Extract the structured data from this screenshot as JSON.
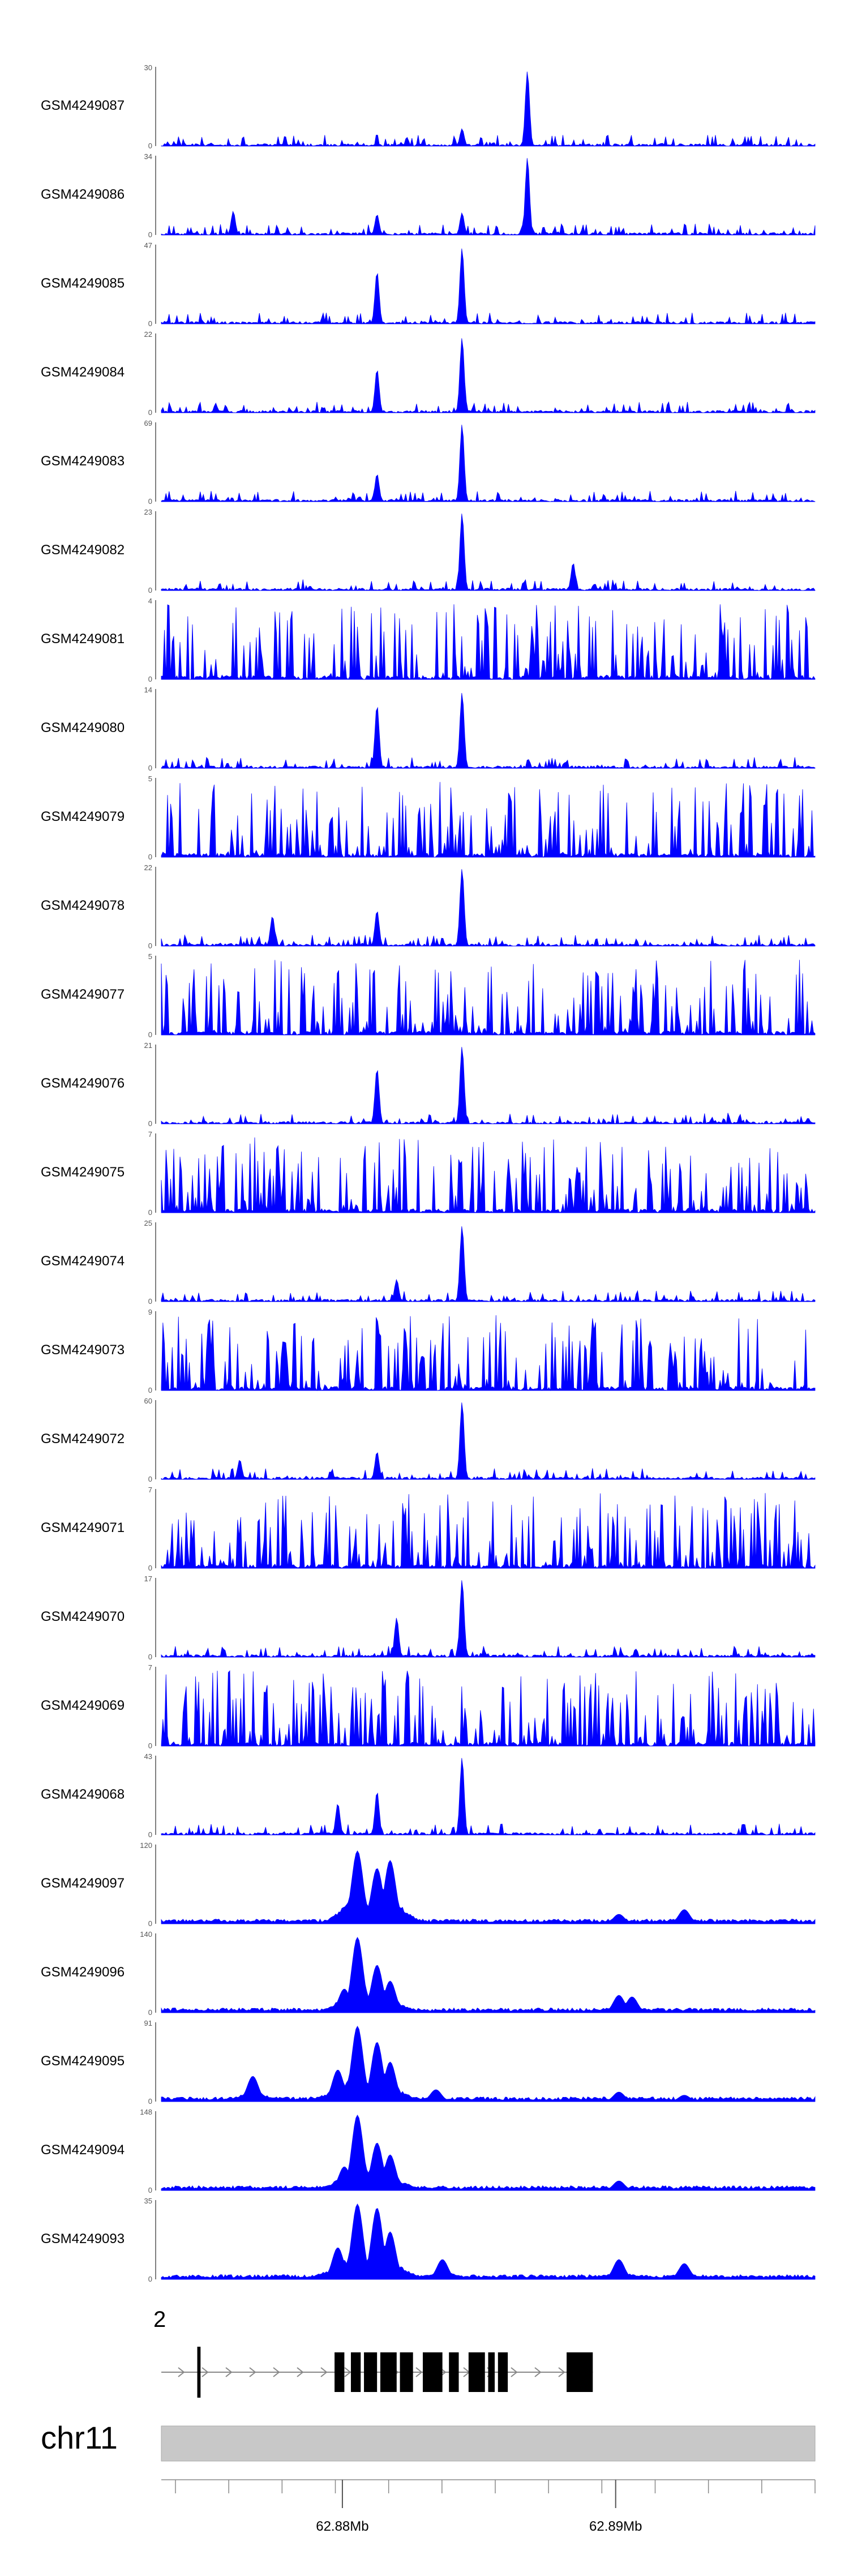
{
  "chart_data": {
    "type": "area",
    "tracks": [
      {
        "name": "GSM4249087",
        "ymax": "30",
        "ymin": "0",
        "color": "#0000ff",
        "profile": "focal",
        "peaks": [
          [
            0.46,
            0.22
          ],
          [
            0.56,
            0.95
          ]
        ]
      },
      {
        "name": "GSM4249086",
        "ymax": "34",
        "ymin": "0",
        "color": "#0000ff",
        "profile": "focal",
        "peaks": [
          [
            0.11,
            0.3
          ],
          [
            0.33,
            0.26
          ],
          [
            0.46,
            0.28
          ],
          [
            0.56,
            0.98
          ]
        ]
      },
      {
        "name": "GSM4249085",
        "ymax": "47",
        "ymin": "0",
        "color": "#0000ff",
        "profile": "focal",
        "peaks": [
          [
            0.33,
            0.66
          ],
          [
            0.46,
            0.96
          ]
        ]
      },
      {
        "name": "GSM4249084",
        "ymax": "22",
        "ymin": "0",
        "color": "#0000ff",
        "profile": "focal",
        "peaks": [
          [
            0.33,
            0.55
          ],
          [
            0.46,
            0.95
          ]
        ]
      },
      {
        "name": "GSM4249083",
        "ymax": "69",
        "ymin": "0",
        "color": "#0000ff",
        "profile": "focal",
        "peaks": [
          [
            0.33,
            0.35
          ],
          [
            0.46,
            0.98
          ]
        ]
      },
      {
        "name": "GSM4249082",
        "ymax": "23",
        "ymin": "0",
        "color": "#0000ff",
        "profile": "focal",
        "peaks": [
          [
            0.46,
            0.98
          ],
          [
            0.63,
            0.35
          ]
        ]
      },
      {
        "name": "GSM4249081",
        "ymax": "4",
        "ymin": "0",
        "color": "#0000ff",
        "profile": "noisy",
        "peaks": []
      },
      {
        "name": "GSM4249080",
        "ymax": "14",
        "ymin": "0",
        "color": "#0000ff",
        "profile": "focal",
        "peaks": [
          [
            0.33,
            0.8
          ],
          [
            0.46,
            0.96
          ]
        ]
      },
      {
        "name": "GSM4249079",
        "ymax": "5",
        "ymin": "0",
        "color": "#0000ff",
        "profile": "noisy",
        "peaks": []
      },
      {
        "name": "GSM4249078",
        "ymax": "22",
        "ymin": "0",
        "color": "#0000ff",
        "profile": "focal",
        "peaks": [
          [
            0.17,
            0.38
          ],
          [
            0.33,
            0.45
          ],
          [
            0.46,
            0.98
          ]
        ]
      },
      {
        "name": "GSM4249077",
        "ymax": "5",
        "ymin": "0",
        "color": "#0000ff",
        "profile": "noisy",
        "peaks": []
      },
      {
        "name": "GSM4249076",
        "ymax": "21",
        "ymin": "0",
        "color": "#0000ff",
        "profile": "focal",
        "peaks": [
          [
            0.33,
            0.7
          ],
          [
            0.46,
            0.98
          ]
        ]
      },
      {
        "name": "GSM4249075",
        "ymax": "7",
        "ymin": "0",
        "color": "#0000ff",
        "profile": "noisy",
        "peaks": []
      },
      {
        "name": "GSM4249074",
        "ymax": "25",
        "ymin": "0",
        "color": "#0000ff",
        "profile": "focal",
        "peaks": [
          [
            0.36,
            0.28
          ],
          [
            0.46,
            0.96
          ]
        ]
      },
      {
        "name": "GSM4249073",
        "ymax": "9",
        "ymin": "0",
        "color": "#0000ff",
        "profile": "noisy",
        "peaks": [
          [
            0.66,
            0.92
          ]
        ]
      },
      {
        "name": "GSM4249072",
        "ymax": "60",
        "ymin": "0",
        "color": "#0000ff",
        "profile": "focal",
        "peaks": [
          [
            0.12,
            0.25
          ],
          [
            0.33,
            0.35
          ],
          [
            0.46,
            0.98
          ]
        ]
      },
      {
        "name": "GSM4249071",
        "ymax": "7",
        "ymin": "0",
        "color": "#0000ff",
        "profile": "noisy",
        "peaks": []
      },
      {
        "name": "GSM4249070",
        "ymax": "17",
        "ymin": "0",
        "color": "#0000ff",
        "profile": "focal",
        "peaks": [
          [
            0.36,
            0.5
          ],
          [
            0.46,
            0.98
          ]
        ]
      },
      {
        "name": "GSM4249069",
        "ymax": "7",
        "ymin": "0",
        "color": "#0000ff",
        "profile": "noisy",
        "peaks": []
      },
      {
        "name": "GSM4249068",
        "ymax": "43",
        "ymin": "0",
        "color": "#0000ff",
        "profile": "focal",
        "peaks": [
          [
            0.27,
            0.4
          ],
          [
            0.33,
            0.55
          ],
          [
            0.46,
            0.98
          ]
        ]
      },
      {
        "name": "GSM4249097",
        "ymax": "120",
        "ymin": "0",
        "color": "#0000ff",
        "profile": "smooth",
        "peaks": [
          [
            0.3,
            0.92
          ],
          [
            0.33,
            0.7
          ],
          [
            0.35,
            0.8
          ],
          [
            0.7,
            0.12
          ],
          [
            0.8,
            0.18
          ]
        ]
      },
      {
        "name": "GSM4249096",
        "ymax": "140",
        "ymin": "0",
        "color": "#0000ff",
        "profile": "smooth",
        "peaks": [
          [
            0.28,
            0.3
          ],
          [
            0.3,
            0.95
          ],
          [
            0.33,
            0.6
          ],
          [
            0.35,
            0.4
          ],
          [
            0.7,
            0.22
          ],
          [
            0.72,
            0.2
          ]
        ]
      },
      {
        "name": "GSM4249095",
        "ymax": "91",
        "ymin": "0",
        "color": "#0000ff",
        "profile": "smooth",
        "peaks": [
          [
            0.14,
            0.32
          ],
          [
            0.27,
            0.4
          ],
          [
            0.3,
            0.95
          ],
          [
            0.33,
            0.75
          ],
          [
            0.35,
            0.5
          ],
          [
            0.42,
            0.15
          ],
          [
            0.7,
            0.12
          ],
          [
            0.8,
            0.08
          ]
        ]
      },
      {
        "name": "GSM4249094",
        "ymax": "148",
        "ymin": "0",
        "color": "#0000ff",
        "profile": "smooth",
        "peaks": [
          [
            0.28,
            0.3
          ],
          [
            0.3,
            0.95
          ],
          [
            0.33,
            0.6
          ],
          [
            0.35,
            0.45
          ],
          [
            0.7,
            0.12
          ]
        ]
      },
      {
        "name": "GSM4249093",
        "ymax": "35",
        "ymin": "0",
        "color": "#0000ff",
        "profile": "smooth",
        "peaks": [
          [
            0.27,
            0.4
          ],
          [
            0.3,
            0.95
          ],
          [
            0.33,
            0.9
          ],
          [
            0.35,
            0.6
          ],
          [
            0.43,
            0.25
          ],
          [
            0.7,
            0.25
          ],
          [
            0.8,
            0.2
          ]
        ]
      }
    ],
    "gene_track": {
      "label": "2",
      "strand": "+",
      "exon_pattern": [
        [
          0.055,
          0.06,
          "line"
        ],
        [
          0.265,
          0.28,
          "block"
        ],
        [
          0.29,
          0.305,
          "block"
        ],
        [
          0.31,
          0.33,
          "block"
        ],
        [
          0.335,
          0.36,
          "block"
        ],
        [
          0.365,
          0.385,
          "block"
        ],
        [
          0.4,
          0.43,
          "block"
        ],
        [
          0.44,
          0.455,
          "block"
        ],
        [
          0.47,
          0.495,
          "block"
        ],
        [
          0.5,
          0.51,
          "block"
        ],
        [
          0.515,
          0.53,
          "block"
        ],
        [
          0.62,
          0.66,
          "block"
        ]
      ],
      "range": [
        0.0,
        0.66
      ]
    },
    "chromosome": {
      "label": "chr11",
      "ticks": [
        "62.88Mb",
        "62.89Mb"
      ],
      "tick_positions": [
        0.277,
        0.695
      ]
    }
  }
}
